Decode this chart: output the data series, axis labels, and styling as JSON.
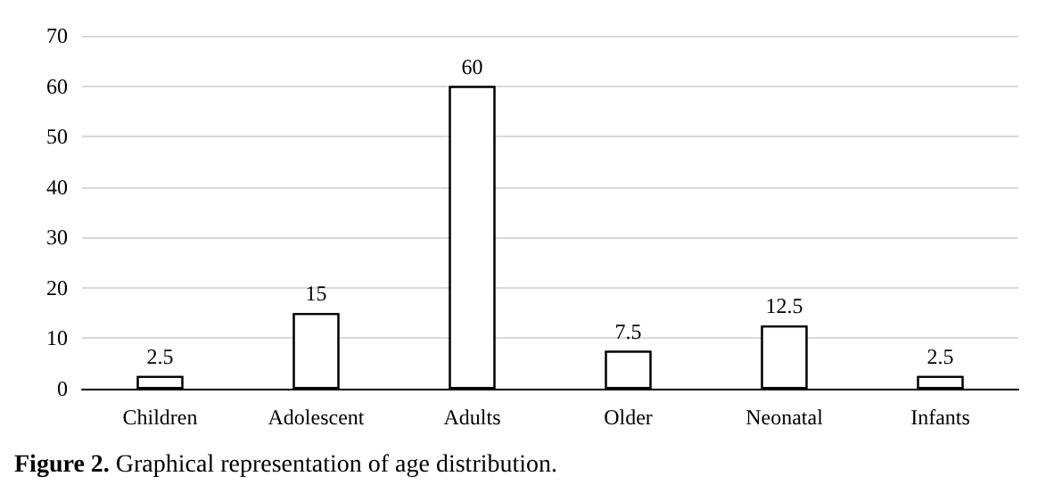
{
  "chart_data": {
    "type": "bar",
    "categories": [
      "Children",
      "Adolescent",
      "Adults",
      "Older",
      "Neonatal",
      "Infants"
    ],
    "values": [
      2.5,
      15,
      60,
      7.5,
      12.5,
      2.5
    ],
    "color": "#ffffff",
    "ylim": [
      0,
      70
    ],
    "yticks": [
      0,
      10,
      20,
      30,
      40,
      50,
      60,
      70
    ],
    "grid": "y",
    "data_labels": true,
    "annotations": [
      "Figure 2. Graphical representation of age distribution."
    ]
  }
}
